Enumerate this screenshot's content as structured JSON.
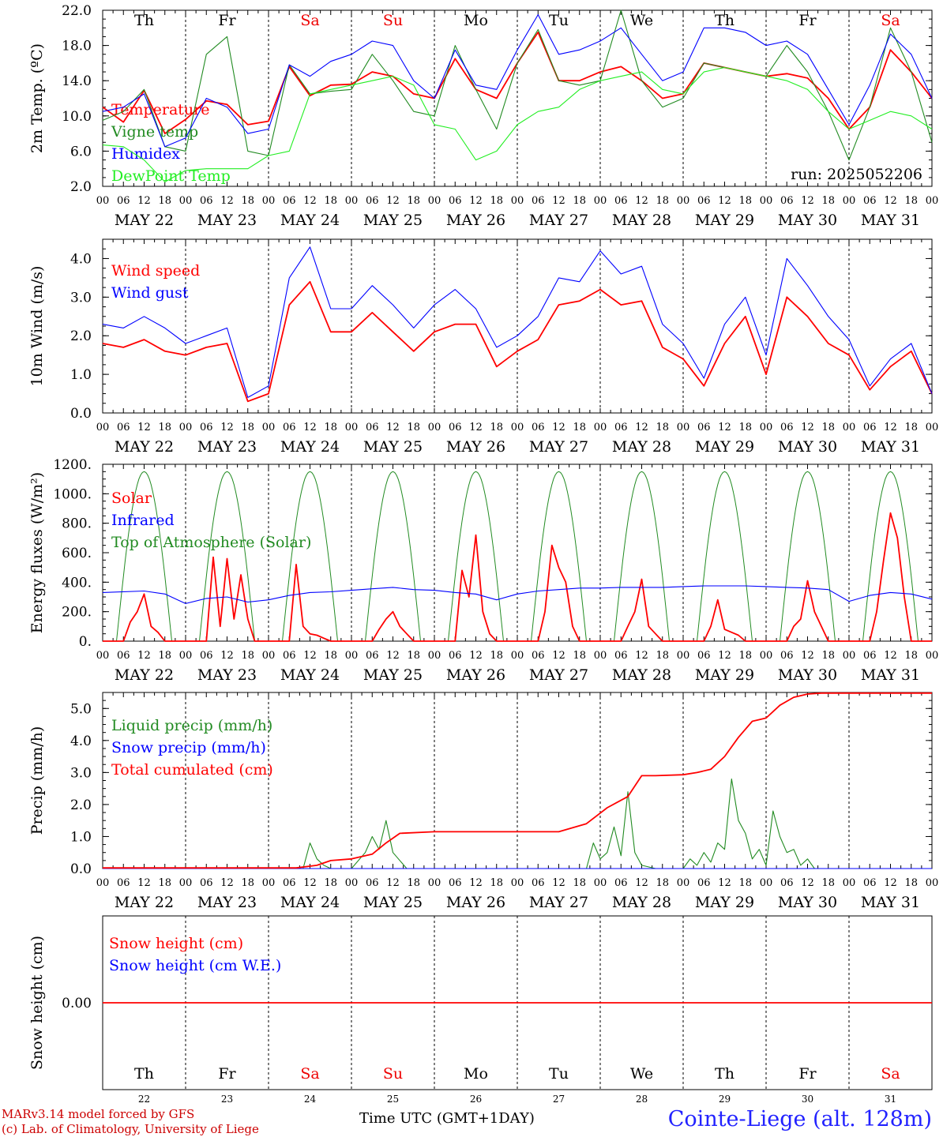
{
  "run_label": "run: 2025052206",
  "station": "Cointe-Liege (alt. 128m)",
  "credit_line1": "MARv3.14 model forced by GFS",
  "credit_line2": "(c) Lab. of Climatology, University of Liege",
  "xlabel": "Time UTC (GMT+1DAY)",
  "colors": {
    "red": "#ff0000",
    "dark_green": "#228b22",
    "blue": "#0000ff",
    "light_green": "#22ee22",
    "weekend": "#ee0000",
    "weekday": "#000000"
  },
  "days": {
    "dates": [
      "MAY 22",
      "MAY 23",
      "MAY 24",
      "MAY 25",
      "MAY 26",
      "MAY 27",
      "MAY 28",
      "MAY 29",
      "MAY 30",
      "MAY 31"
    ],
    "weekday": [
      "Th",
      "Fr",
      "Sa",
      "Su",
      "Mo",
      "Tu",
      "We",
      "Th",
      "Fr",
      "Sa"
    ],
    "weekend": [
      false,
      false,
      true,
      true,
      false,
      false,
      false,
      false,
      false,
      true
    ],
    "numbers": [
      "22",
      "23",
      "24",
      "25",
      "26",
      "27",
      "28",
      "29",
      "30",
      "31"
    ],
    "hour_ticks": [
      "00",
      "06",
      "12",
      "18"
    ],
    "end_tick": "00"
  },
  "chart_data": [
    {
      "type": "line",
      "ylabel": "2m Temp. (ºC)",
      "ylim": [
        2.0,
        22.0
      ],
      "yticks": [
        "2.0",
        "6.0",
        "10.0",
        "14.0",
        "18.0",
        "22.0"
      ],
      "x_unit": "hours since 2025-05-22 00 UTC",
      "series": [
        {
          "name": "Temperature",
          "color": "#ff0000",
          "x": [
            0,
            6,
            12,
            18,
            24,
            30,
            36,
            42,
            48,
            54,
            60,
            66,
            72,
            78,
            84,
            90,
            96,
            102,
            108,
            114,
            120,
            126,
            132,
            138,
            144,
            150,
            156,
            162,
            168,
            174,
            180,
            186,
            192,
            198,
            204,
            210,
            216,
            222,
            228,
            234,
            240
          ],
          "values": [
            11.0,
            9.3,
            12.9,
            8.0,
            9.6,
            11.7,
            11.3,
            9.0,
            9.4,
            15.6,
            12.3,
            13.5,
            13.6,
            15.0,
            14.5,
            12.5,
            12.0,
            16.5,
            13.0,
            12.0,
            16.0,
            19.5,
            14.0,
            14.0,
            15.0,
            15.6,
            14.0,
            12.0,
            12.5,
            16.0,
            15.5,
            15.0,
            14.5,
            14.8,
            14.3,
            12.0,
            8.5,
            11.0,
            17.5,
            15.0,
            12.0
          ]
        },
        {
          "name": "Vigne temp",
          "color": "#228b22",
          "x": [
            0,
            6,
            12,
            18,
            24,
            30,
            36,
            42,
            48,
            54,
            60,
            66,
            72,
            78,
            84,
            90,
            96,
            102,
            108,
            114,
            120,
            126,
            132,
            138,
            144,
            150,
            156,
            162,
            168,
            174,
            180,
            186,
            192,
            198,
            204,
            210,
            216,
            222,
            228,
            234,
            240
          ],
          "values": [
            9.5,
            10.5,
            13.0,
            6.5,
            6.0,
            17.0,
            19.0,
            6.0,
            5.5,
            15.8,
            12.5,
            12.8,
            13.0,
            17.0,
            14.0,
            10.5,
            10.0,
            18.0,
            13.0,
            8.5,
            16.0,
            19.8,
            14.0,
            13.5,
            14.0,
            22.0,
            14.0,
            11.0,
            12.0,
            16.0,
            15.5,
            15.0,
            14.5,
            18.0,
            15.0,
            10.5,
            5.0,
            11.0,
            20.0,
            15.0,
            7.0
          ]
        },
        {
          "name": "Humidex",
          "color": "#0000ff",
          "x": [
            0,
            6,
            12,
            18,
            24,
            30,
            36,
            42,
            48,
            54,
            60,
            66,
            72,
            78,
            84,
            90,
            96,
            102,
            108,
            114,
            120,
            126,
            132,
            138,
            144,
            150,
            156,
            162,
            168,
            174,
            180,
            186,
            192,
            198,
            204,
            210,
            216,
            222,
            228,
            234,
            240
          ],
          "values": [
            10.5,
            11.0,
            12.5,
            6.5,
            7.5,
            12.0,
            11.0,
            8.0,
            8.5,
            15.8,
            14.5,
            16.2,
            17.0,
            18.5,
            18.0,
            14.0,
            12.0,
            17.5,
            13.5,
            13.0,
            17.5,
            21.5,
            17.0,
            17.5,
            18.5,
            20.0,
            17.0,
            14.0,
            15.0,
            20.0,
            20.0,
            19.5,
            18.0,
            18.5,
            17.0,
            13.0,
            9.0,
            13.5,
            19.3,
            17.0,
            12.0
          ]
        },
        {
          "name": "DewPoint Temp",
          "color": "#22ee22",
          "x": [
            0,
            6,
            12,
            18,
            24,
            30,
            36,
            42,
            48,
            54,
            60,
            66,
            72,
            78,
            84,
            90,
            96,
            102,
            108,
            114,
            120,
            126,
            132,
            138,
            144,
            150,
            156,
            162,
            168,
            174,
            180,
            186,
            192,
            198,
            204,
            210,
            216,
            222,
            228,
            234,
            240
          ],
          "values": [
            6.7,
            6.5,
            5.0,
            2.5,
            3.8,
            4.0,
            4.0,
            4.0,
            5.5,
            6.0,
            12.5,
            13.0,
            13.5,
            14.0,
            14.5,
            13.5,
            9.0,
            8.5,
            5.0,
            6.0,
            9.0,
            10.5,
            11.0,
            13.0,
            14.0,
            14.5,
            15.0,
            13.0,
            12.5,
            15.0,
            15.5,
            15.0,
            14.5,
            14.0,
            13.0,
            10.5,
            8.5,
            9.5,
            10.5,
            10.0,
            8.5
          ]
        }
      ]
    },
    {
      "type": "line",
      "ylabel": "10m Wind (m/s)",
      "ylim": [
        0.0,
        4.5
      ],
      "yticks": [
        "0.0",
        "1.0",
        "2.0",
        "3.0",
        "4.0"
      ],
      "x_unit": "hours since 2025-05-22 00 UTC",
      "series": [
        {
          "name": "Wind speed",
          "color": "#ff0000",
          "x": [
            0,
            6,
            12,
            18,
            24,
            30,
            36,
            42,
            48,
            54,
            60,
            66,
            72,
            78,
            84,
            90,
            96,
            102,
            108,
            114,
            120,
            126,
            132,
            138,
            144,
            150,
            156,
            162,
            168,
            174,
            180,
            186,
            192,
            198,
            204,
            210,
            216,
            222,
            228,
            234,
            240
          ],
          "values": [
            1.8,
            1.7,
            1.9,
            1.6,
            1.5,
            1.7,
            1.8,
            0.3,
            0.5,
            2.8,
            3.4,
            2.1,
            2.1,
            2.6,
            2.1,
            1.6,
            2.1,
            2.3,
            2.3,
            1.2,
            1.6,
            1.9,
            2.8,
            2.9,
            3.2,
            2.8,
            2.9,
            1.7,
            1.4,
            0.7,
            1.8,
            2.5,
            1.0,
            3.0,
            2.5,
            1.8,
            1.5,
            0.6,
            1.2,
            1.6,
            0.5
          ]
        },
        {
          "name": "Wind gust",
          "color": "#0000ff",
          "x": [
            0,
            6,
            12,
            18,
            24,
            30,
            36,
            42,
            48,
            54,
            60,
            66,
            72,
            78,
            84,
            90,
            96,
            102,
            108,
            114,
            120,
            126,
            132,
            138,
            144,
            150,
            156,
            162,
            168,
            174,
            180,
            186,
            192,
            198,
            204,
            210,
            216,
            222,
            228,
            234,
            240
          ],
          "values": [
            2.3,
            2.2,
            2.5,
            2.2,
            1.8,
            2.0,
            2.2,
            0.4,
            0.7,
            3.5,
            4.3,
            2.7,
            2.7,
            3.3,
            2.8,
            2.2,
            2.8,
            3.2,
            2.7,
            1.7,
            2.0,
            2.5,
            3.5,
            3.4,
            4.2,
            3.6,
            3.8,
            2.3,
            1.8,
            0.9,
            2.3,
            3.0,
            1.5,
            4.0,
            3.3,
            2.5,
            1.9,
            0.7,
            1.4,
            1.8,
            0.5
          ]
        }
      ]
    },
    {
      "type": "line",
      "ylabel": "Energy fluxes (W/m²)",
      "ylim": [
        0,
        1200
      ],
      "yticks": [
        "0.",
        "200.",
        "400.",
        "600.",
        "800.",
        "1000.",
        "1200."
      ],
      "x_unit": "hours since 2025-05-22 00 UTC",
      "toa_peak": 1150,
      "series": [
        {
          "name": "Solar",
          "color": "#ff0000",
          "x": [
            0,
            6,
            8,
            10,
            12,
            14,
            16,
            18,
            20,
            24,
            30,
            32,
            34,
            36,
            38,
            40,
            42,
            44,
            48,
            54,
            56,
            58,
            60,
            62,
            64,
            66,
            72,
            78,
            80,
            82,
            84,
            86,
            88,
            90,
            96,
            102,
            104,
            106,
            108,
            110,
            112,
            114,
            120,
            126,
            128,
            130,
            132,
            134,
            136,
            138,
            144,
            150,
            152,
            154,
            156,
            158,
            160,
            162,
            168,
            174,
            176,
            178,
            180,
            182,
            184,
            186,
            192,
            198,
            200,
            202,
            204,
            206,
            208,
            210,
            216,
            222,
            224,
            226,
            228,
            230,
            232,
            234,
            240
          ],
          "values": [
            0,
            0,
            130,
            200,
            320,
            100,
            60,
            0,
            0,
            0,
            0,
            570,
            100,
            560,
            150,
            450,
            150,
            0,
            0,
            0,
            520,
            100,
            50,
            40,
            20,
            0,
            0,
            0,
            80,
            150,
            200,
            100,
            50,
            0,
            0,
            0,
            480,
            300,
            720,
            200,
            50,
            0,
            0,
            0,
            200,
            650,
            500,
            400,
            100,
            0,
            0,
            0,
            100,
            200,
            420,
            100,
            50,
            0,
            0,
            0,
            100,
            280,
            80,
            60,
            40,
            0,
            0,
            0,
            100,
            150,
            410,
            200,
            100,
            0,
            0,
            0,
            200,
            550,
            870,
            700,
            300,
            0,
            0
          ]
        },
        {
          "name": "Infrared",
          "color": "#0000ff",
          "x": [
            0,
            12,
            18,
            24,
            30,
            36,
            42,
            48,
            54,
            60,
            66,
            72,
            78,
            84,
            90,
            96,
            102,
            108,
            114,
            120,
            126,
            132,
            138,
            144,
            150,
            156,
            162,
            168,
            174,
            180,
            186,
            192,
            198,
            204,
            210,
            216,
            222,
            228,
            234,
            240
          ],
          "values": [
            330,
            340,
            320,
            255,
            290,
            300,
            265,
            280,
            310,
            330,
            335,
            345,
            355,
            365,
            350,
            345,
            330,
            320,
            280,
            320,
            340,
            350,
            360,
            360,
            365,
            365,
            365,
            370,
            375,
            375,
            375,
            370,
            365,
            360,
            350,
            270,
            310,
            330,
            320,
            285
          ]
        },
        {
          "name": "Top of Atmosphere (Solar)",
          "color": "#228b22",
          "x": [],
          "values": []
        }
      ]
    },
    {
      "type": "line",
      "ylabel": "Precip (mm/h)",
      "ylim": [
        0.0,
        5.5
      ],
      "yticks": [
        "0.0",
        "1.0",
        "2.0",
        "3.0",
        "4.0",
        "5.0"
      ],
      "x_unit": "hours since 2025-05-22 00 UTC",
      "series": [
        {
          "name": "Liquid precip (mm/h)",
          "color": "#228b22",
          "x": [
            0,
            58,
            60,
            62,
            64,
            66,
            72,
            76,
            78,
            80,
            82,
            84,
            88,
            96,
            132,
            140,
            142,
            144,
            146,
            148,
            150,
            152,
            154,
            156,
            160,
            168,
            170,
            172,
            174,
            176,
            178,
            180,
            182,
            184,
            186,
            188,
            190,
            192,
            194,
            196,
            198,
            200,
            202,
            204,
            206,
            240
          ],
          "values": [
            0,
            0,
            0.8,
            0.3,
            0.1,
            0,
            0,
            0.5,
            1.0,
            0.6,
            1.5,
            0.5,
            0,
            0,
            0,
            0,
            0.8,
            0.3,
            0.5,
            1.3,
            0.4,
            2.4,
            0.5,
            0.1,
            0,
            0,
            0.3,
            0.1,
            0.5,
            0.2,
            0.8,
            0.6,
            2.8,
            1.5,
            1.1,
            0.3,
            0.6,
            0.1,
            1.8,
            1.0,
            0.5,
            0.6,
            0.1,
            0.3,
            0,
            0
          ]
        },
        {
          "name": "Snow precip (mm/h)",
          "color": "#0000ff",
          "x": [
            0,
            240
          ],
          "values": [
            0,
            0
          ]
        },
        {
          "name": "Total cumulated (cm)",
          "color": "#ff0000",
          "x": [
            0,
            56,
            62,
            66,
            72,
            78,
            82,
            86,
            96,
            120,
            132,
            140,
            146,
            152,
            156,
            160,
            168,
            172,
            176,
            180,
            184,
            188,
            192,
            196,
            200,
            204,
            208,
            212,
            240
          ],
          "values": [
            0.02,
            0.02,
            0.1,
            0.25,
            0.3,
            0.45,
            0.8,
            1.1,
            1.15,
            1.15,
            1.15,
            1.4,
            1.9,
            2.25,
            2.9,
            2.9,
            2.93,
            3.0,
            3.1,
            3.5,
            4.1,
            4.6,
            4.7,
            5.1,
            5.35,
            5.45,
            5.48,
            5.48,
            5.48
          ]
        }
      ]
    },
    {
      "type": "line",
      "ylabel": "Snow height (cm)",
      "ylim": [
        -1.0,
        1.0
      ],
      "yticks": [
        "0.00"
      ],
      "x_unit": "hours since 2025-05-22 00 UTC",
      "series": [
        {
          "name": "Snow height (cm)",
          "color": "#ff0000",
          "x": [
            0,
            240
          ],
          "values": [
            0,
            0
          ]
        },
        {
          "name": "Snow height (cm W.E.)",
          "color": "#0000ff",
          "x": [],
          "values": []
        }
      ]
    }
  ]
}
